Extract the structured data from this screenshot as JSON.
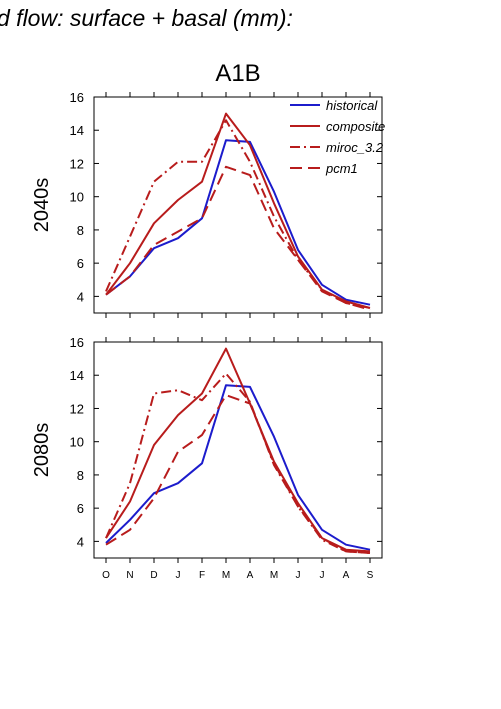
{
  "chart_data": {
    "type": "line",
    "title": "d flow: surface + basal (mm):",
    "scenario": "A1B",
    "months": [
      "O",
      "N",
      "D",
      "J",
      "F",
      "M",
      "A",
      "M",
      "J",
      "J",
      "A",
      "S"
    ],
    "ylim": [
      3,
      16
    ],
    "yticks": [
      "4",
      "6",
      "8",
      "10",
      "12",
      "14",
      "16"
    ],
    "legend": {
      "placement": "top-right",
      "entries": [
        "historical",
        "composite",
        "miroc_3.2",
        "pcm1"
      ]
    },
    "series_styles": {
      "historical": {
        "color": "#1c1ccc",
        "dash": ""
      },
      "composite": {
        "color": "#b81c1c",
        "dash": ""
      },
      "miroc_3.2": {
        "color": "#b81c1c",
        "dash": "10,4,2,4"
      },
      "pcm1": {
        "color": "#b81c1c",
        "dash": "12,6"
      }
    },
    "panels": [
      {
        "label": "2040s",
        "series": [
          {
            "name": "historical",
            "values": [
              4.1,
              5.2,
              6.9,
              7.5,
              8.7,
              13.4,
              13.3,
              10.3,
              6.8,
              4.7,
              3.8,
              3.5
            ]
          },
          {
            "name": "composite",
            "values": [
              4.1,
              6.0,
              8.4,
              9.8,
              10.9,
              15.0,
              13.1,
              9.6,
              6.4,
              4.4,
              3.7,
              3.3
            ]
          },
          {
            "name": "miroc_3.2",
            "values": [
              4.3,
              7.6,
              10.9,
              12.1,
              12.1,
              14.6,
              12.1,
              8.8,
              6.2,
              4.4,
              3.6,
              3.3
            ]
          },
          {
            "name": "pcm1",
            "values": [
              4.1,
              5.2,
              7.1,
              7.9,
              8.7,
              11.8,
              11.3,
              8.1,
              6.2,
              4.3,
              3.6,
              3.2
            ]
          }
        ]
      },
      {
        "label": "2080s",
        "series": [
          {
            "name": "historical",
            "values": [
              3.9,
              5.3,
              6.9,
              7.5,
              8.7,
              13.4,
              13.3,
              10.3,
              6.8,
              4.7,
              3.8,
              3.5
            ]
          },
          {
            "name": "composite",
            "values": [
              4.2,
              6.4,
              9.8,
              11.6,
              12.9,
              15.6,
              12.3,
              8.8,
              6.3,
              4.2,
              3.5,
              3.4
            ]
          },
          {
            "name": "miroc_3.2",
            "values": [
              4.2,
              7.5,
              12.9,
              13.1,
              12.5,
              14.1,
              12.4,
              8.6,
              6.1,
              4.1,
              3.4,
              3.3
            ]
          },
          {
            "name": "pcm1",
            "values": [
              3.8,
              4.7,
              6.6,
              9.4,
              10.4,
              12.8,
              12.3,
              8.7,
              6.1,
              4.2,
              3.4,
              3.3
            ]
          }
        ]
      }
    ]
  }
}
